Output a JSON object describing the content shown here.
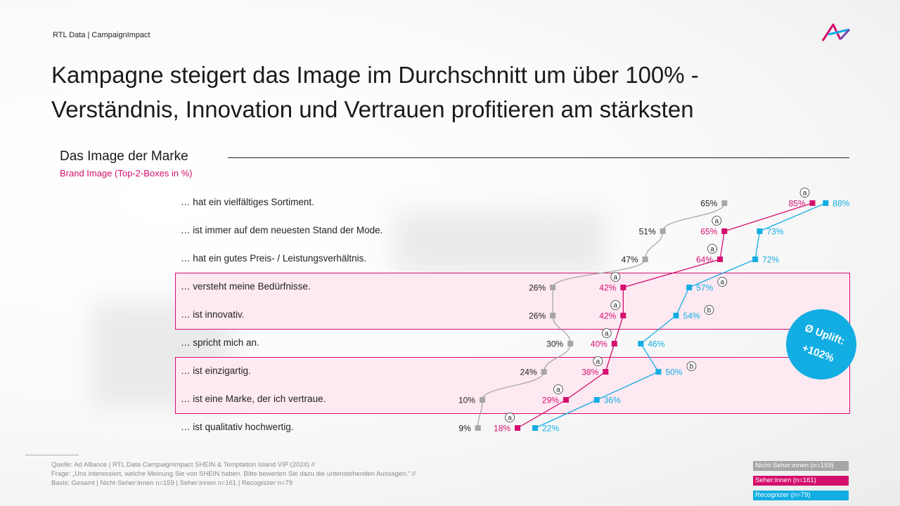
{
  "header": "RTL Data | CampaignImpact",
  "title_line1": "Kampagne steigert das Image im Durchschnitt um über 100% -",
  "title_line2": "Verständnis, Innovation und Vertrauen profitieren am stärksten",
  "section_title": "Das Image der Marke",
  "section_subtitle": "Brand Image (Top-2-Boxes in %)",
  "uplift_line1": "Ø Uplift:",
  "uplift_line2": "+102%",
  "footer": {
    "line1": "Quelle: Ad Alliance | RTL Data CampaignImpact SHEIN & Temptation Island VIP (2024) //",
    "line2": "Frage: „Uns interessiert, welche Meinung Sie von SHEIN haben. Bitte bewerten Sie dazu die untenstehenden Aussagen.“ //",
    "line3": "Basis: Gesamt | Nicht-Seher:innen n=159 | Seher:innen n=161 | Recognizer n=79"
  },
  "legend": [
    {
      "label": "Nicht-Seher:innen (n=159)",
      "color": "#a6a6a6"
    },
    {
      "label": "Seher:innen (n=161)",
      "color": "#d40f6e"
    },
    {
      "label": "Recognizer (n=79)",
      "color": "#12ade3"
    }
  ],
  "colors": {
    "accent_pink": "#d40f6e",
    "accent_blue": "#12ade3",
    "grey": "#a6a6a6"
  },
  "chart_data": {
    "type": "line",
    "title": "Das Image der Marke",
    "subtitle": "Brand Image (Top-2-Boxes in %)",
    "categories": [
      "… hat ein vielfältiges Sortiment.",
      "… ist immer auf dem neuesten Stand der Mode.",
      "… hat ein gutes Preis- / Leistungsverhältnis.",
      "… versteht meine Bedürfnisse.",
      "… ist innovativ.",
      "… spricht mich an.",
      "… ist einzigartig.",
      "… ist eine Marke, der ich vertraue.",
      "… ist qualitativ hochwertig."
    ],
    "highlighted_rows": [
      [
        3,
        4
      ],
      [
        6,
        7
      ]
    ],
    "unit": "%",
    "series": [
      {
        "name": "Nicht-Seher:innen (n=159)",
        "color": "#a6a6a6",
        "values": [
          65,
          51,
          47,
          26,
          26,
          30,
          24,
          10,
          9
        ],
        "markers": [
          "",
          "",
          "",
          "",
          "",
          "",
          "",
          "",
          ""
        ]
      },
      {
        "name": "Seher:innen (n=161)",
        "color": "#d40f6e",
        "values": [
          85,
          65,
          64,
          42,
          42,
          40,
          38,
          29,
          18
        ],
        "markers": [
          "a",
          "a",
          "a",
          "a",
          "a",
          "a",
          "a",
          "a",
          "a"
        ]
      },
      {
        "name": "Recognizer (n=79)",
        "color": "#12ade3",
        "values": [
          88,
          73,
          72,
          57,
          54,
          46,
          50,
          36,
          22
        ],
        "markers": [
          "",
          "",
          "",
          "a",
          "b",
          "",
          "b",
          "",
          ""
        ]
      }
    ]
  }
}
